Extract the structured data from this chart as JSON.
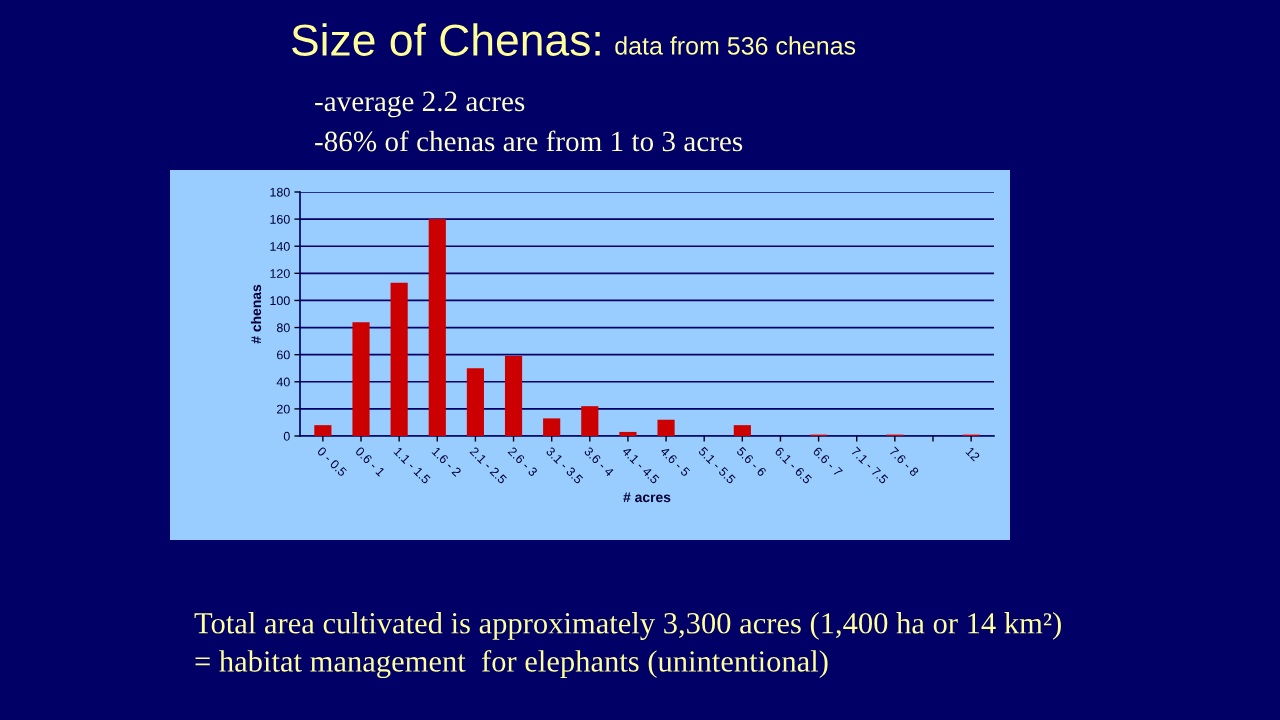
{
  "chart_data": {
    "type": "bar",
    "title": "Size of Chenas:",
    "subtitle": "data from 536 chenas",
    "annotations": [
      "-average 2.2 acres",
      "-86% of chenas are from 1 to 3 acres",
      "Total area cultivated is approximately 3,300 acres (1,400 ha or 14 km²)",
      "= habitat management  for elephants (unintentional)"
    ],
    "xlabel": "# acres",
    "ylabel": "# chenas",
    "categories": [
      "0 - 0.5",
      "0.6 - 1",
      "1.1 - 1.5",
      "1.6 - 2",
      "2.1 - 2.5",
      "2.6 - 3",
      "3.1 - 3.5",
      "3.6 - 4",
      "4.1 - 4.5",
      "4.6 - 5",
      "5.1 - 5.5",
      "5.6 - 6",
      "6.1 - 6.5",
      "6.6 - 7",
      "7.1 - 7.5",
      "7.6 - 8",
      null,
      "12"
    ],
    "values": [
      8,
      84,
      113,
      160,
      50,
      59,
      13,
      22,
      3,
      12,
      0,
      8,
      0,
      1,
      0,
      1,
      0,
      1
    ],
    "color": "#cc0000",
    "ylim": [
      0,
      180
    ],
    "yticks": [
      0,
      20,
      40,
      60,
      80,
      100,
      120,
      140,
      160,
      180
    ],
    "grid": "y"
  }
}
